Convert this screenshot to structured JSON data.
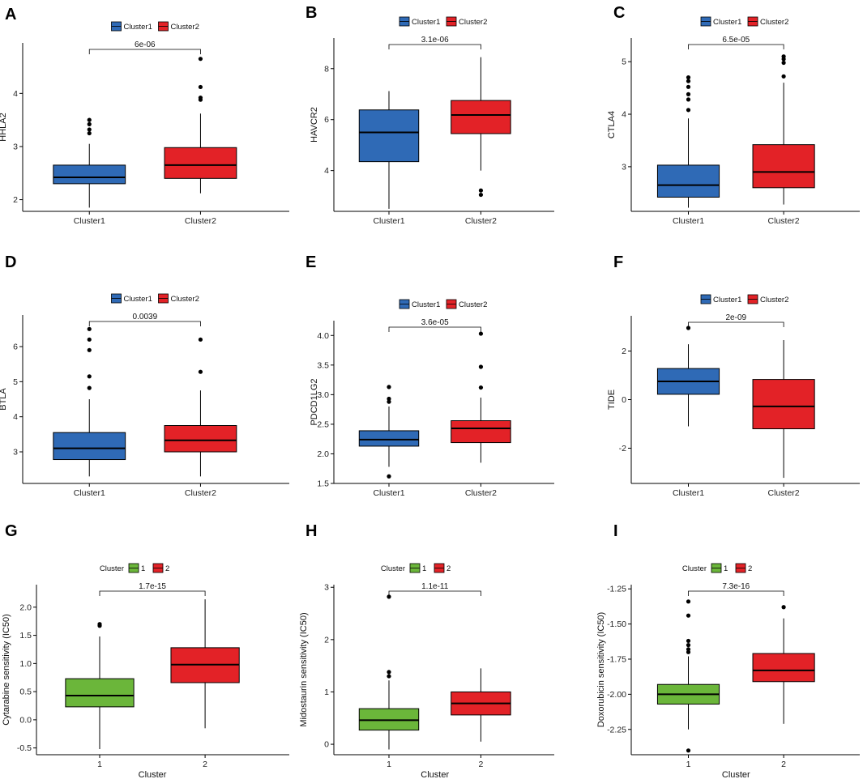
{
  "figure": {
    "colors": {
      "cluster1": "#2F6AB6",
      "cluster2": "#E32227",
      "group1": "#6BB63A",
      "axis": "#000000"
    }
  },
  "chart_data": [
    {
      "type": "box",
      "panel": "A",
      "ylabel": "HHLA2",
      "xlabel": "",
      "legend_title": "",
      "legend": [
        "Cluster1",
        "Cluster2"
      ],
      "categories": [
        "Cluster1",
        "Cluster2"
      ],
      "yticks": [
        2,
        3,
        4
      ],
      "ylim": [
        1.78,
        4.95
      ],
      "pvalue": "6e-06",
      "boxes": [
        {
          "name": "Cluster1",
          "min": 1.85,
          "q1": 2.3,
          "median": 2.42,
          "q3": 2.65,
          "max": 3.05,
          "outliers": [
            3.25,
            3.32,
            3.42,
            3.5
          ],
          "color": "#2F6AB6"
        },
        {
          "name": "Cluster2",
          "min": 2.12,
          "q1": 2.4,
          "median": 2.65,
          "q3": 2.98,
          "max": 3.62,
          "outliers": [
            3.88,
            3.92,
            4.12,
            4.65
          ],
          "color": "#E32227"
        }
      ]
    },
    {
      "type": "box",
      "panel": "B",
      "ylabel": "HAVCR2",
      "xlabel": "",
      "legend_title": "",
      "legend": [
        "Cluster1",
        "Cluster2"
      ],
      "categories": [
        "Cluster1",
        "Cluster2"
      ],
      "yticks": [
        4,
        6,
        8
      ],
      "ylim": [
        2.4,
        9.2
      ],
      "pvalue": "3.1e-06",
      "boxes": [
        {
          "name": "Cluster1",
          "min": 2.5,
          "q1": 4.35,
          "median": 5.5,
          "q3": 6.38,
          "max": 7.12,
          "outliers": [],
          "color": "#2F6AB6"
        },
        {
          "name": "Cluster2",
          "min": 4.0,
          "q1": 5.45,
          "median": 6.18,
          "q3": 6.75,
          "max": 8.45,
          "outliers": [
            3.05,
            3.22
          ],
          "color": "#E32227"
        }
      ]
    },
    {
      "type": "box",
      "panel": "C",
      "ylabel": "CTLA4",
      "xlabel": "",
      "legend_title": "",
      "legend": [
        "Cluster1",
        "Cluster2"
      ],
      "categories": [
        "Cluster1",
        "Cluster2"
      ],
      "yticks": [
        3,
        4,
        5
      ],
      "ylim": [
        2.15,
        5.45
      ],
      "pvalue": "6.5e-05",
      "boxes": [
        {
          "name": "Cluster1",
          "min": 2.22,
          "q1": 2.42,
          "median": 2.65,
          "q3": 3.03,
          "max": 3.92,
          "outliers": [
            4.08,
            4.28,
            4.38,
            4.52,
            4.63,
            4.7
          ],
          "color": "#2F6AB6"
        },
        {
          "name": "Cluster2",
          "min": 2.28,
          "q1": 2.6,
          "median": 2.9,
          "q3": 3.42,
          "max": 4.6,
          "outliers": [
            4.72,
            4.98,
            5.05,
            5.1
          ],
          "color": "#E32227"
        }
      ]
    },
    {
      "type": "box",
      "panel": "D",
      "ylabel": "BTLA",
      "xlabel": "",
      "legend_title": "",
      "legend": [
        "Cluster1",
        "Cluster2"
      ],
      "categories": [
        "Cluster1",
        "Cluster2"
      ],
      "yticks": [
        3,
        4,
        5,
        6
      ],
      "ylim": [
        2.1,
        6.9
      ],
      "pvalue": "0.0039",
      "boxes": [
        {
          "name": "Cluster1",
          "min": 2.3,
          "q1": 2.78,
          "median": 3.1,
          "q3": 3.55,
          "max": 4.5,
          "outliers": [
            4.82,
            5.15,
            5.9,
            6.2,
            6.5
          ],
          "color": "#2F6AB6"
        },
        {
          "name": "Cluster2",
          "min": 2.3,
          "q1": 3.0,
          "median": 3.33,
          "q3": 3.75,
          "max": 4.75,
          "outliers": [
            5.28,
            6.2
          ],
          "color": "#E32227"
        }
      ]
    },
    {
      "type": "box",
      "panel": "E",
      "ylabel": "PDCD1LG2",
      "xlabel": "",
      "legend_title": "",
      "legend": [
        "Cluster1",
        "Cluster2"
      ],
      "categories": [
        "Cluster1",
        "Cluster2"
      ],
      "yticks": [
        1.5,
        2.0,
        2.5,
        3.0,
        3.5,
        4.0
      ],
      "ytick_labels": [
        "1.5",
        "2.0",
        "2.5",
        "3.0",
        "3.5",
        "4.0"
      ],
      "ylim": [
        1.5,
        4.25
      ],
      "pvalue": "3.6e-05",
      "boxes": [
        {
          "name": "Cluster1",
          "min": 1.78,
          "q1": 2.13,
          "median": 2.24,
          "q3": 2.39,
          "max": 2.8,
          "outliers": [
            1.62,
            2.88,
            2.93,
            3.13
          ],
          "color": "#2F6AB6"
        },
        {
          "name": "Cluster2",
          "min": 1.85,
          "q1": 2.19,
          "median": 2.43,
          "q3": 2.56,
          "max": 2.95,
          "outliers": [
            3.12,
            3.47,
            4.03
          ],
          "color": "#E32227"
        }
      ]
    },
    {
      "type": "box",
      "panel": "F",
      "ylabel": "TIDE",
      "xlabel": "",
      "legend_title": "",
      "legend": [
        "Cluster1",
        "Cluster2"
      ],
      "categories": [
        "Cluster1",
        "Cluster2"
      ],
      "yticks": [
        -2,
        0,
        2
      ],
      "ylim": [
        -3.45,
        3.45
      ],
      "pvalue": "2e-09",
      "boxes": [
        {
          "name": "Cluster1",
          "min": -1.1,
          "q1": 0.22,
          "median": 0.75,
          "q3": 1.28,
          "max": 2.28,
          "outliers": [
            2.95
          ],
          "color": "#2F6AB6"
        },
        {
          "name": "Cluster2",
          "min": -3.22,
          "q1": -1.2,
          "median": -0.28,
          "q3": 0.83,
          "max": 2.45,
          "outliers": [],
          "color": "#E32227"
        }
      ]
    },
    {
      "type": "box",
      "panel": "G",
      "ylabel": "Cytarabine sensitivity (IC50)",
      "xlabel": "Cluster",
      "legend_title": "Cluster",
      "legend": [
        "1",
        "2"
      ],
      "categories": [
        "1",
        "2"
      ],
      "yticks": [
        -0.5,
        0.0,
        0.5,
        1.0,
        1.5,
        2.0
      ],
      "ytick_labels": [
        "-0.5",
        "0.0",
        "0.5",
        "1.0",
        "1.5",
        "2.0"
      ],
      "ylim": [
        -0.62,
        2.4
      ],
      "pvalue": "1.7e-15",
      "boxes": [
        {
          "name": "1",
          "min": -0.52,
          "q1": 0.23,
          "median": 0.43,
          "q3": 0.73,
          "max": 1.48,
          "outliers": [
            1.67,
            1.7
          ],
          "color": "#6BB63A"
        },
        {
          "name": "2",
          "min": -0.15,
          "q1": 0.66,
          "median": 0.98,
          "q3": 1.28,
          "max": 2.14,
          "outliers": [],
          "color": "#E32227"
        }
      ]
    },
    {
      "type": "box",
      "panel": "H",
      "ylabel": "Midostaurin sensitivity (IC50)",
      "xlabel": "Cluster",
      "legend_title": "Cluster",
      "legend": [
        "1",
        "2"
      ],
      "categories": [
        "1",
        "2"
      ],
      "yticks": [
        0,
        1,
        2,
        3
      ],
      "ylim": [
        -0.2,
        3.05
      ],
      "pvalue": "1.1e-11",
      "boxes": [
        {
          "name": "1",
          "min": -0.1,
          "q1": 0.27,
          "median": 0.46,
          "q3": 0.68,
          "max": 1.22,
          "outliers": [
            1.3,
            1.38,
            2.82
          ],
          "color": "#6BB63A"
        },
        {
          "name": "2",
          "min": 0.05,
          "q1": 0.56,
          "median": 0.78,
          "q3": 1.0,
          "max": 1.45,
          "outliers": [],
          "color": "#E32227"
        }
      ]
    },
    {
      "type": "box",
      "panel": "I",
      "ylabel": "Doxorubicin sensitivity (IC50)",
      "xlabel": "Cluster",
      "legend_title": "Cluster",
      "legend": [
        "1",
        "2"
      ],
      "categories": [
        "1",
        "2"
      ],
      "yticks": [
        -2.25,
        -2.0,
        -1.75,
        -1.5,
        -1.25
      ],
      "ytick_labels": [
        "-2.25",
        "-2.00",
        "-1.75",
        "-1.50",
        "-1.25"
      ],
      "ylim": [
        -2.43,
        -1.22
      ],
      "pvalue": "7.3e-16",
      "boxes": [
        {
          "name": "1",
          "min": -2.25,
          "q1": -2.07,
          "median": -2.0,
          "q3": -1.93,
          "max": -1.73,
          "outliers": [
            -2.4,
            -1.7,
            -1.68,
            -1.65,
            -1.62,
            -1.44,
            -1.34
          ],
          "color": "#6BB63A"
        },
        {
          "name": "2",
          "min": -2.21,
          "q1": -1.91,
          "median": -1.83,
          "q3": -1.71,
          "max": -1.46,
          "outliers": [
            -1.38
          ],
          "color": "#E32227"
        }
      ]
    }
  ]
}
